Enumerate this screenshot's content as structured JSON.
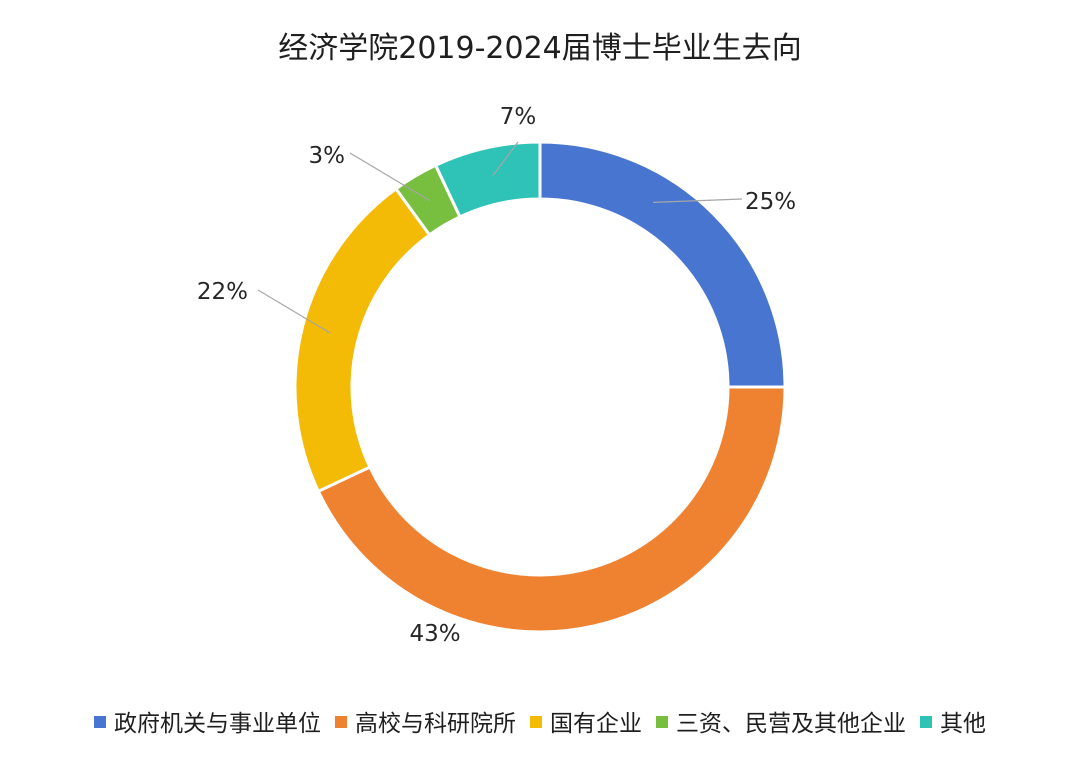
{
  "chart_data": {
    "type": "pie",
    "variant": "donut",
    "title": "经济学院2019-2024届博士毕业生去向",
    "categories": [
      "政府机关与事业单位",
      "高校与科研院所",
      "国有企业",
      "三资、民营及其他企业",
      "其他"
    ],
    "values": [
      25,
      43,
      22,
      3,
      7
    ],
    "value_labels": [
      "25%",
      "43%",
      "22%",
      "3%",
      "7%"
    ],
    "colors": [
      "#4875CF",
      "#EE8231",
      "#F3BA06",
      "#79BF3F",
      "#2FC3B7"
    ],
    "unit": "%",
    "legend_position": "bottom",
    "start_angle_deg": 0,
    "direction": "clockwise"
  }
}
